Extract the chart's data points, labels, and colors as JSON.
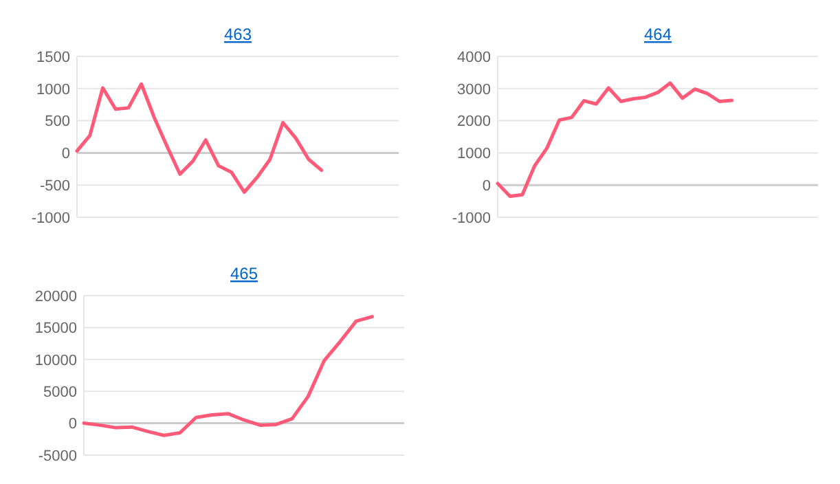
{
  "chart_data": [
    {
      "type": "line",
      "title": "463",
      "categories": [
        null,
        null,
        null,
        null,
        null,
        null,
        null,
        null,
        null,
        null,
        null,
        null,
        null,
        null,
        null,
        null,
        null,
        null,
        null,
        null,
        null,
        null,
        null,
        null,
        null,
        null
      ],
      "series": [
        {
          "color": "#ff5a78",
          "values": [
            30,
            270,
            1010,
            680,
            700,
            1070,
            550,
            100,
            -330,
            -130,
            200,
            -200,
            -300,
            -610,
            -380,
            -100,
            470,
            230,
            -100,
            -270,
            null,
            null,
            null,
            null,
            null,
            null
          ]
        }
      ],
      "ylim": [
        -1000,
        1500
      ],
      "yticks": [
        -1000,
        -500,
        0,
        500,
        1000,
        1500
      ],
      "grid": "y"
    },
    {
      "type": "line",
      "title": "464",
      "categories": [
        null,
        null,
        null,
        null,
        null,
        null,
        null,
        null,
        null,
        null,
        null,
        null,
        null,
        null,
        null,
        null,
        null,
        null,
        null,
        null,
        null,
        null,
        null,
        null,
        null,
        null,
        null
      ],
      "series": [
        {
          "color": "#ff5a78",
          "values": [
            50,
            -350,
            -300,
            600,
            1150,
            2020,
            2100,
            2620,
            2520,
            3020,
            2600,
            2680,
            2730,
            2880,
            3170,
            2700,
            2980,
            2850,
            2600,
            2630,
            null,
            null,
            null,
            null,
            null,
            null,
            null
          ]
        }
      ],
      "ylim": [
        -1000,
        4000
      ],
      "yticks": [
        -1000,
        0,
        1000,
        2000,
        3000,
        4000
      ],
      "grid": "y"
    },
    {
      "type": "line",
      "title": "465",
      "categories": [
        null,
        null,
        null,
        null,
        null,
        null,
        null,
        null,
        null,
        null,
        null,
        null,
        null,
        null,
        null,
        null,
        null,
        null,
        null,
        null,
        null
      ],
      "series": [
        {
          "color": "#ff5a78",
          "values": [
            0,
            -300,
            -700,
            -600,
            -1300,
            -1900,
            -1500,
            900,
            1300,
            1500,
            500,
            -300,
            -200,
            700,
            4200,
            9800,
            12800,
            16000,
            16700,
            null,
            null
          ]
        }
      ],
      "ylim": [
        -5000,
        20000
      ],
      "yticks": [
        -5000,
        0,
        5000,
        10000,
        15000,
        20000
      ],
      "grid": "y"
    }
  ]
}
